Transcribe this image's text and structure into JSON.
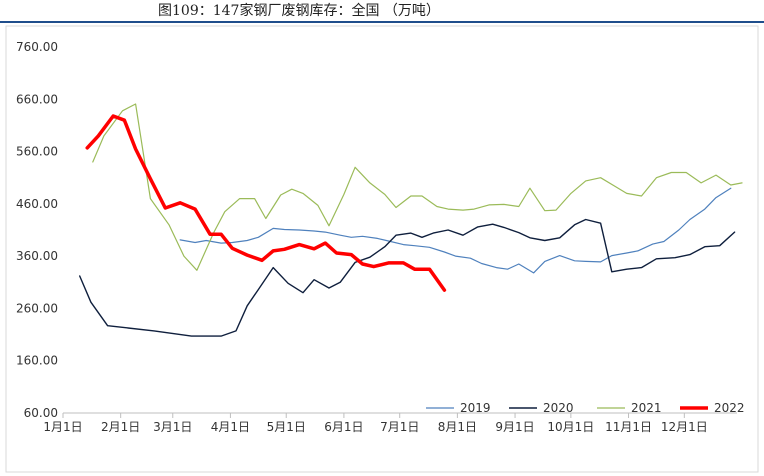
{
  "header": {
    "title": "图109：147家钢厂废钢库存：全国 （万吨）"
  },
  "colors": {
    "title_rule": "#1f4e8c",
    "y2019": "#4f81bd",
    "y2020": "#0f1f3d",
    "y2021": "#9bbb59",
    "y2022": "#ff0000"
  },
  "chart_data": {
    "type": "line",
    "title": "图109：147家钢厂废钢库存：全国 （万吨）",
    "xlabel": "",
    "ylabel": "",
    "ylim": [
      60,
      760
    ],
    "yticks": [
      "760.00",
      "660.00",
      "560.00",
      "460.00",
      "360.00",
      "260.00",
      "160.00",
      "60.00"
    ],
    "yticks_values": [
      760,
      660,
      560,
      460,
      360,
      260,
      160,
      60
    ],
    "xticks": [
      "1月1日",
      "2月1日",
      "3月1日",
      "4月1日",
      "5月1日",
      "6月1日",
      "7月1日",
      "8月1日",
      "9月1日",
      "10月1日",
      "11月1日",
      "12月1日"
    ],
    "xlim_day": [
      1,
      366
    ],
    "grid": false,
    "legend_position": "bottom-right",
    "series": [
      {
        "name": "2019",
        "color": "#4f81bd",
        "width": 1.2,
        "x_day": [
          64,
          72,
          78,
          86,
          92,
          100,
          106,
          114,
          120,
          128,
          136,
          142,
          150,
          156,
          162,
          170,
          176,
          184,
          190,
          198,
          206,
          212,
          220,
          226,
          234,
          240,
          246,
          254,
          260,
          268,
          276,
          282,
          290,
          296,
          304,
          310,
          318,
          324,
          332,
          338,
          346,
          352,
          360
        ],
        "values": [
          391,
          386,
          390,
          385,
          386,
          390,
          396,
          413,
          411,
          410,
          408,
          406,
          400,
          396,
          398,
          394,
          389,
          382,
          380,
          377,
          368,
          360,
          356,
          346,
          338,
          335,
          345,
          328,
          350,
          361,
          351,
          350,
          349,
          361,
          366,
          370,
          383,
          388,
          410,
          430,
          450,
          472,
          490
        ]
      },
      {
        "name": "2020",
        "color": "#0f1f3d",
        "width": 1.4,
        "x_day": [
          10,
          16,
          25,
          50,
          70,
          78,
          86,
          94,
          100,
          106,
          114,
          122,
          130,
          136,
          144,
          150,
          158,
          166,
          174,
          180,
          188,
          194,
          200,
          208,
          216,
          224,
          232,
          238,
          246,
          252,
          260,
          268,
          276,
          282,
          290,
          296,
          304,
          312,
          320,
          330,
          338,
          346,
          354,
          362
        ],
        "values": [
          322,
          272,
          227,
          217,
          207,
          207,
          207,
          217,
          265,
          296,
          338,
          308,
          290,
          315,
          299,
          310,
          348,
          358,
          378,
          400,
          404,
          396,
          404,
          410,
          400,
          416,
          421,
          415,
          405,
          395,
          390,
          395,
          420,
          430,
          423,
          330,
          335,
          338,
          355,
          357,
          363,
          378,
          380,
          406
        ]
      },
      {
        "name": "2021",
        "color": "#9bbb59",
        "width": 1.2,
        "x_day": [
          17,
          23,
          33,
          40,
          48,
          58,
          66,
          73,
          82,
          88,
          96,
          104,
          110,
          118,
          124,
          130,
          138,
          144,
          152,
          158,
          166,
          174,
          180,
          188,
          194,
          202,
          208,
          216,
          222,
          230,
          238,
          246,
          252,
          260,
          266,
          274,
          282,
          290,
          298,
          304,
          312,
          320,
          328,
          336,
          344,
          352,
          360,
          366
        ],
        "values": [
          540,
          590,
          638,
          651,
          470,
          420,
          360,
          333,
          405,
          445,
          470,
          470,
          432,
          477,
          488,
          480,
          457,
          418,
          478,
          530,
          500,
          478,
          453,
          475,
          475,
          455,
          450,
          448,
          450,
          458,
          459,
          455,
          490,
          447,
          448,
          480,
          504,
          510,
          493,
          480,
          475,
          510,
          520,
          520,
          500,
          515,
          496,
          500
        ]
      },
      {
        "name": "2022",
        "color": "#ff0000",
        "width": 3.5,
        "x_day": [
          14,
          20,
          28,
          34,
          40,
          48,
          56,
          64,
          72,
          80,
          86,
          92,
          100,
          108,
          114,
          120,
          128,
          136,
          142,
          148,
          156,
          162,
          168,
          176,
          184,
          190,
          198,
          206
        ],
        "values": [
          567,
          590,
          628,
          620,
          565,
          508,
          452,
          462,
          450,
          402,
          402,
          375,
          362,
          352,
          370,
          373,
          382,
          374,
          385,
          366,
          363,
          345,
          340,
          347,
          347,
          335,
          335,
          295
        ]
      }
    ]
  }
}
